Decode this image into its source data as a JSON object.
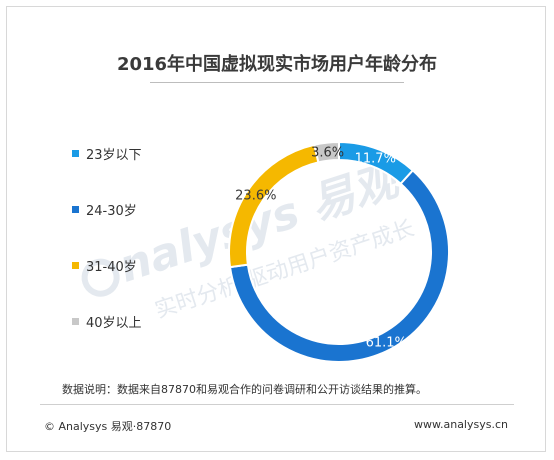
{
  "chart_data": {
    "type": "pie",
    "title": "2016年中国虚拟现实市场用户年龄分布",
    "categories": [
      "23岁以下",
      "24-30岁",
      "31-40岁",
      "40岁以上"
    ],
    "values": [
      11.7,
      61.1,
      23.6,
      3.6
    ],
    "value_labels": [
      "11.7%",
      "61.1%",
      "23.6%",
      "3.6%"
    ],
    "colors": [
      "#1a9be6",
      "#1a74d0",
      "#f5b800",
      "#c8c8c8"
    ],
    "legend_position": "left",
    "donut": true
  },
  "note": "数据说明：数据来自87870和易观合作的问卷调研和公开访谈结果的推算。",
  "copyright": "© Analysys 易观·87870",
  "website": "www.analysys.cn",
  "watermark": {
    "brand": "nalysys 易观",
    "slogan": "实时分析 驱动用户资产成长"
  }
}
